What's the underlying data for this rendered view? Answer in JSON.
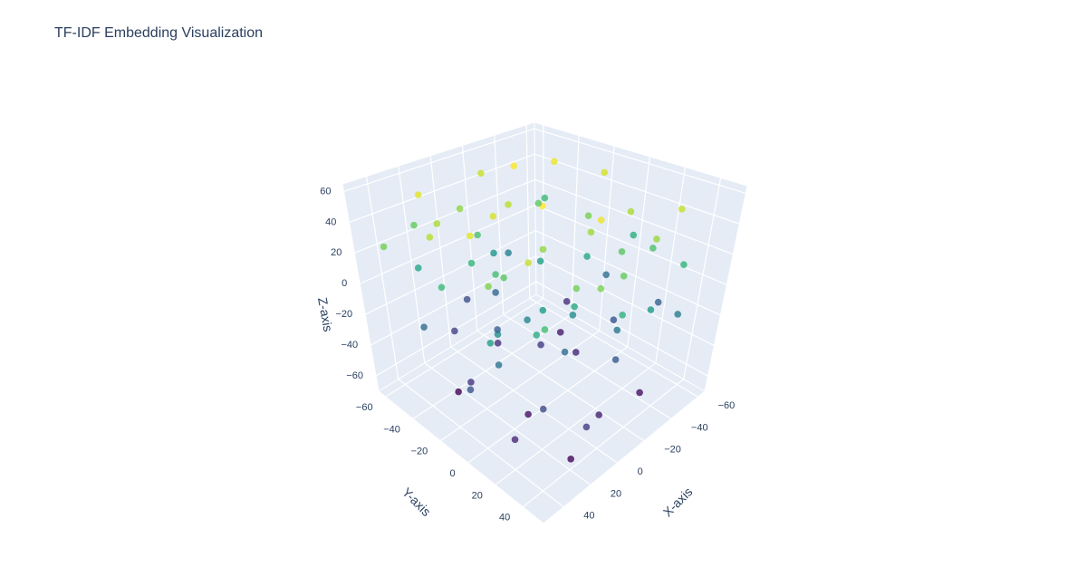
{
  "chart_data": {
    "type": "scatter3d",
    "title": "TF-IDF Embedding Visualization",
    "x_label": "X-axis",
    "y_label": "Y-axis",
    "z_label": "Z-axis",
    "x": [
      -50,
      20,
      -30,
      10,
      -55,
      40,
      -20,
      30,
      -45,
      0,
      35,
      -10,
      45,
      -35,
      15,
      -60,
      25,
      -15,
      5,
      -40,
      50,
      -25,
      10,
      -5,
      -30,
      20,
      -50,
      35,
      0,
      -20,
      45,
      -60,
      10,
      -10,
      30,
      -40,
      15,
      -25,
      40,
      -55,
      5,
      25,
      -35,
      50,
      -15,
      0,
      -45,
      20,
      35,
      -5,
      -20,
      10,
      -40,
      30,
      -10,
      40,
      -50,
      0,
      20,
      -30,
      50,
      -60,
      15,
      -25,
      5,
      35,
      -45,
      25,
      -5,
      45,
      -35,
      10,
      -15,
      30,
      -55,
      0,
      20,
      -30,
      40,
      -10
    ],
    "y": [
      -40,
      -55,
      -45,
      -20,
      30,
      -30,
      10,
      20,
      10,
      -50,
      -10,
      -30,
      10,
      35,
      35,
      -20,
      -40,
      20,
      5,
      -10,
      -50,
      -60,
      45,
      -5,
      20,
      -10,
      40,
      30,
      -40,
      -20,
      -20,
      0,
      10,
      40,
      -50,
      -40,
      -30,
      45,
      40,
      -50,
      25,
      0,
      -5,
      15,
      -45,
      50,
      25,
      -60,
      5,
      15,
      30,
      -20,
      10,
      30,
      -10,
      -40,
      -30,
      40,
      10,
      -50,
      0,
      20,
      -45,
      0,
      20,
      -15,
      45,
      45,
      -55,
      25,
      -20,
      0,
      35,
      -30,
      -10,
      -30,
      50,
      40,
      10,
      -40
    ],
    "z": [
      52,
      50,
      55,
      48,
      45,
      42,
      38,
      45,
      40,
      35,
      50,
      43,
      33,
      37,
      30,
      48,
      40,
      52,
      36,
      31,
      30,
      45,
      32,
      55,
      25,
      20,
      15,
      10,
      22,
      5,
      18,
      12,
      3,
      28,
      8,
      26,
      15,
      2,
      20,
      18,
      10,
      25,
      8,
      5,
      0,
      14,
      22,
      27,
      -2,
      -5,
      -15,
      -25,
      -30,
      -35,
      -40,
      -20,
      -45,
      -50,
      -55,
      -10,
      -30,
      -25,
      -38,
      -48,
      -20,
      -42,
      -12,
      -58,
      -33,
      -47,
      -52,
      -8,
      -28,
      -60,
      -18,
      -45,
      -40,
      -55,
      -15,
      -22
    ],
    "colorscale": "Viridis",
    "opacity": 0.8,
    "xlim": [
      -65,
      55
    ],
    "ylim": [
      -65,
      55
    ],
    "zlim": [
      -70,
      65
    ],
    "xticks": [
      {
        "value": -60,
        "label": "−60"
      },
      {
        "value": -40,
        "label": "−40"
      },
      {
        "value": -20,
        "label": "−20"
      },
      0,
      20,
      40
    ],
    "yticks": [
      {
        "value": -60,
        "label": "−60"
      },
      {
        "value": -40,
        "label": "−40"
      },
      {
        "value": -20,
        "label": "−20"
      },
      0,
      20,
      40
    ],
    "zticks": [
      {
        "value": -60,
        "label": "−60"
      },
      {
        "value": -40,
        "label": "−40"
      },
      {
        "value": -20,
        "label": "−20"
      },
      0,
      20,
      40,
      60
    ],
    "grid": true
  }
}
